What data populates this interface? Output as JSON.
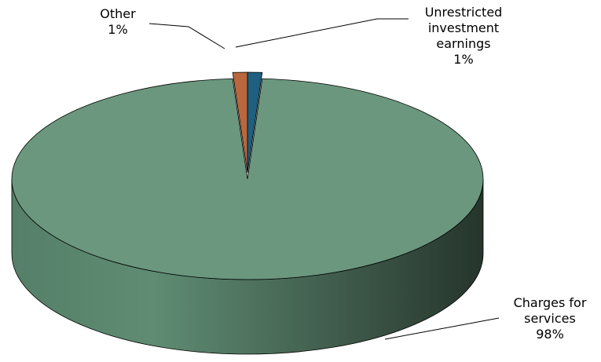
{
  "chart_data": {
    "type": "pie",
    "categories": [
      "Unrestricted investment earnings",
      "Charges for services",
      "Other"
    ],
    "values": [
      1,
      98,
      1
    ],
    "value_labels": [
      "1%",
      "98%",
      "1%"
    ],
    "colors": [
      "#1f5f80",
      "#6b977e",
      "#b8673e"
    ]
  }
}
